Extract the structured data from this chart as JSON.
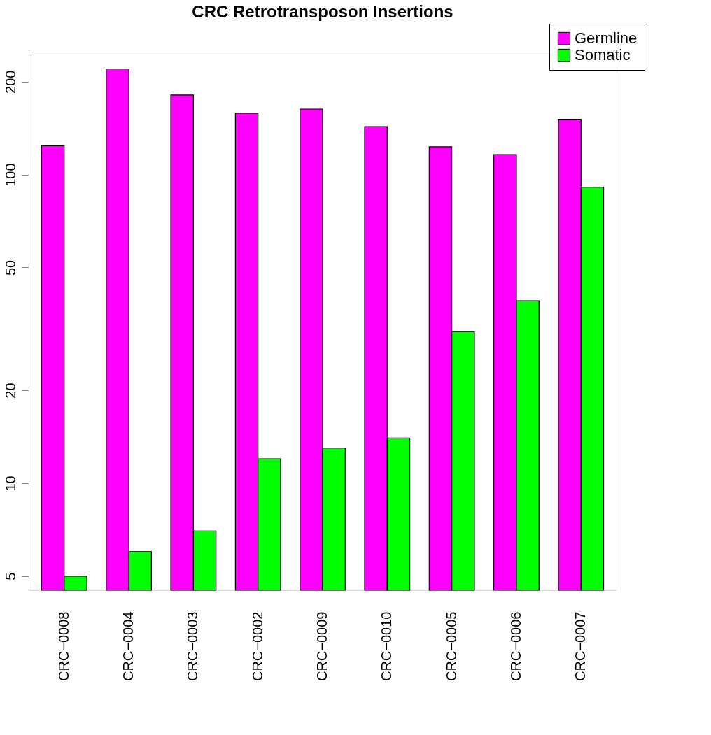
{
  "chart_data": {
    "type": "bar",
    "title": "CRC Retrotransposon Insertions",
    "categories": [
      "CRC−0008",
      "CRC−0004",
      "CRC−0003",
      "CRC−0002",
      "CRC−0009",
      "CRC−0010",
      "CRC−0005",
      "CRC−0006",
      "CRC−0007"
    ],
    "series": [
      {
        "name": "Germline",
        "color": "#ff00ff",
        "values": [
          124,
          220,
          181,
          158,
          163,
          143,
          123,
          116,
          151
        ]
      },
      {
        "name": "Somatic",
        "color": "#00ff00",
        "values": [
          5,
          6,
          7,
          12,
          13,
          14,
          31,
          39,
          91
        ]
      }
    ],
    "log": true,
    "ylim": [
      4.5,
      250
    ],
    "yticks": [
      5,
      10,
      20,
      50,
      100,
      200
    ],
    "grid": false,
    "legend": "top right"
  }
}
